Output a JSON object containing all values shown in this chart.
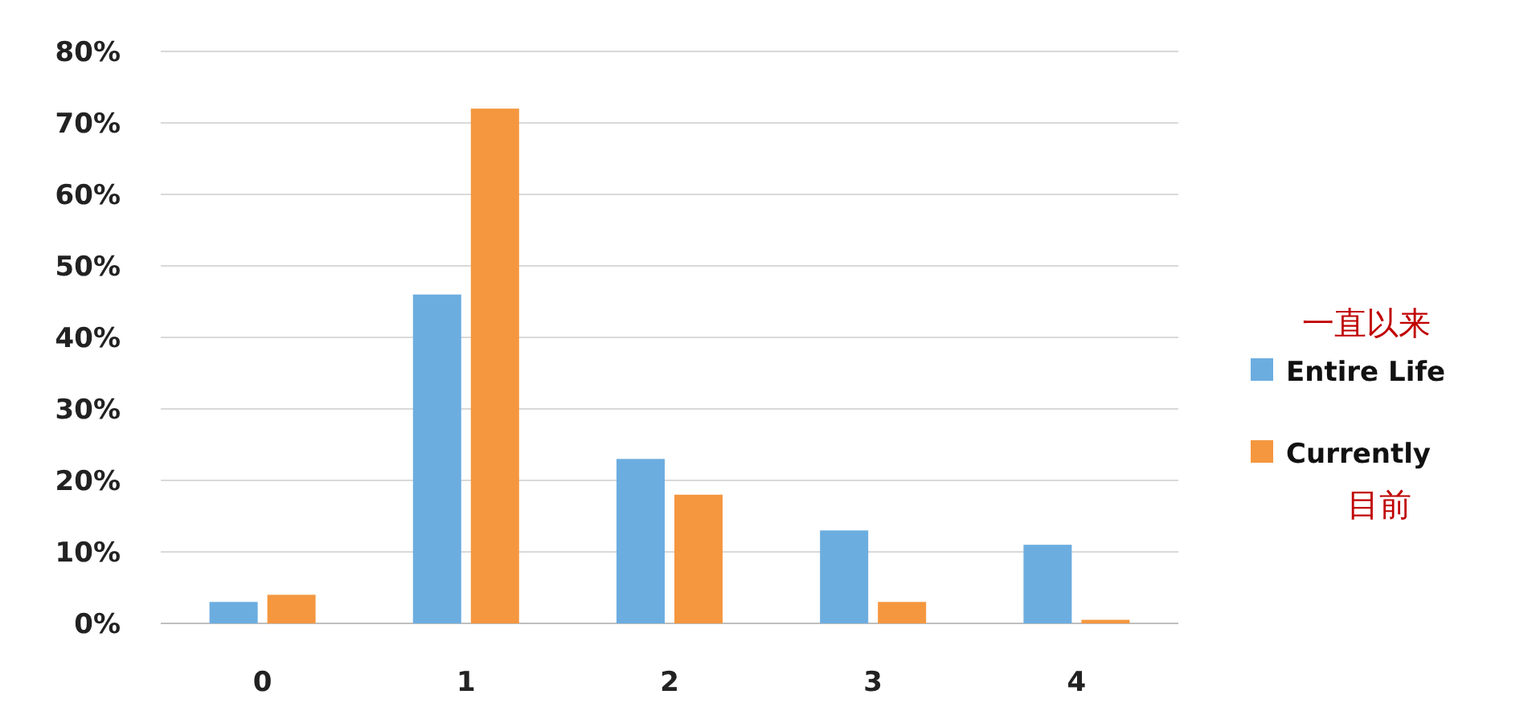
{
  "chart_data": {
    "type": "bar",
    "categories": [
      "0",
      "1",
      "2",
      "3",
      "4"
    ],
    "series": [
      {
        "name": "Entire Life",
        "color": "#6cade0",
        "values": [
          3,
          46,
          23,
          13,
          11
        ]
      },
      {
        "name": "Currently",
        "color": "#f4973f",
        "values": [
          4,
          72,
          18,
          3,
          0.5
        ]
      }
    ],
    "ylim": [
      0,
      80
    ],
    "yticks": [
      {
        "value": 0,
        "label": "0%"
      },
      {
        "value": 10,
        "label": "10%"
      },
      {
        "value": 20,
        "label": "20%"
      },
      {
        "value": 30,
        "label": "30%"
      },
      {
        "value": 40,
        "label": "40%"
      },
      {
        "value": 50,
        "label": "50%"
      },
      {
        "value": 60,
        "label": "60%"
      },
      {
        "value": 70,
        "label": "70%"
      },
      {
        "value": 80,
        "label": "80%"
      }
    ],
    "grid": "y",
    "legend": "right",
    "annotations": [
      "一直以来",
      "目前"
    ]
  }
}
